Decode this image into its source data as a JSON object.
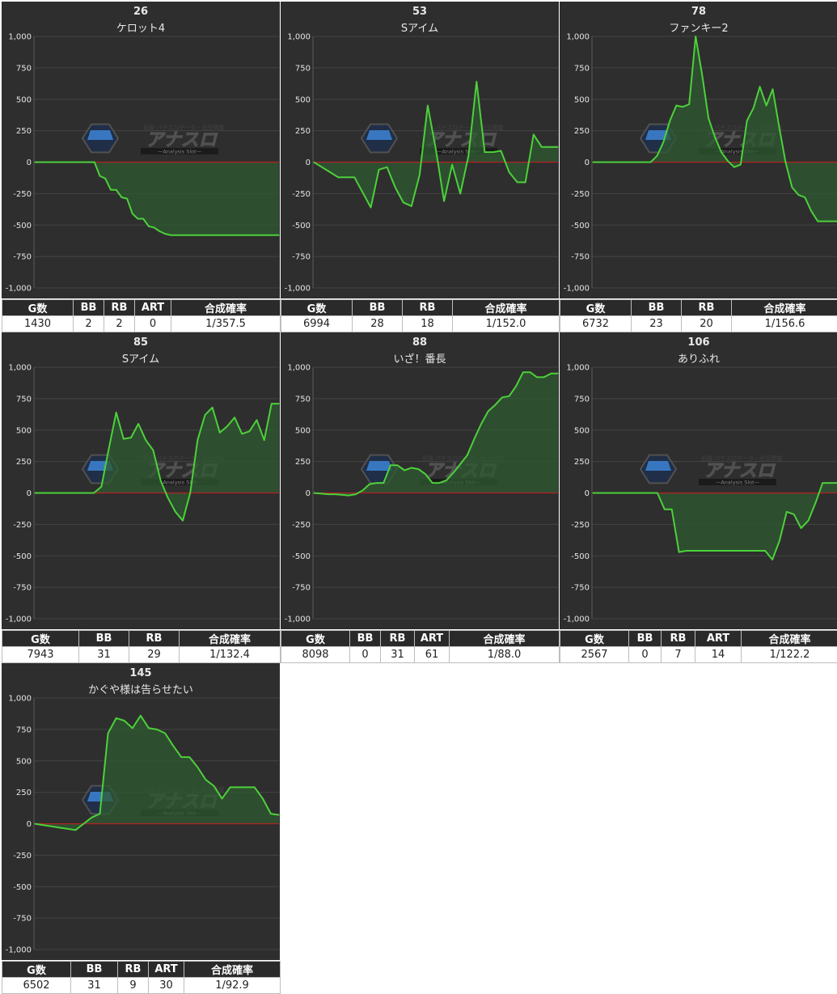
{
  "colors": {
    "plot_bg": "#2e2e2e",
    "line": "#4cd13a",
    "fill": "#2f5a31",
    "zero_line": "#b52222",
    "grid": "#444444"
  },
  "watermark": {
    "top": "全国 パチスロデータ・出玉情報",
    "main": "アナスロ",
    "sub": "—Analysis Slot—"
  },
  "charts": [
    {
      "number": "26",
      "name": "ケロット4",
      "headers": [
        "G数",
        "BB",
        "RB",
        "ART",
        "合成確率"
      ],
      "values": [
        "1430",
        "2",
        "2",
        "0",
        "1/357.5"
      ],
      "col_widths": [
        88,
        38,
        38,
        45,
        135
      ],
      "chart_data": {
        "type": "area",
        "ylim": [
          -1000,
          1000
        ],
        "yticks": [
          1000,
          750,
          500,
          250,
          0,
          -250,
          -500,
          -750,
          -1000
        ],
        "y": [
          0,
          0,
          0,
          0,
          0,
          0,
          0,
          0,
          0,
          0,
          0,
          0,
          -110,
          -130,
          -220,
          -220,
          -280,
          -290,
          -410,
          -450,
          -450,
          -510,
          -520,
          -550,
          -570,
          -580,
          -580,
          -580,
          -580,
          -580,
          -580,
          -580,
          -580,
          -580,
          -580,
          -580,
          -580,
          -580,
          -580,
          -580,
          -580,
          -580,
          -580,
          -580,
          -580,
          -580
        ]
      }
    },
    {
      "number": "53",
      "name": "Sアイム",
      "headers": [
        "G数",
        "BB",
        "RB",
        "合成確率"
      ],
      "values": [
        "6994",
        "28",
        "18",
        "1/152.0"
      ],
      "col_widths": [
        88,
        62,
        62,
        132
      ],
      "chart_data": {
        "type": "area",
        "ylim": [
          -1000,
          1000
        ],
        "yticks": [
          1000,
          750,
          500,
          250,
          0,
          -250,
          -500,
          -750,
          -1000
        ],
        "y": [
          0,
          -40,
          -80,
          -120,
          -120,
          -120,
          -240,
          -360,
          -60,
          -40,
          -200,
          -320,
          -350,
          -100,
          450,
          100,
          -310,
          -20,
          -250,
          50,
          640,
          80,
          80,
          90,
          -80,
          -160,
          -160,
          220,
          120,
          120,
          120
        ]
      }
    },
    {
      "number": "78",
      "name": "ファンキー2",
      "headers": [
        "G数",
        "BB",
        "RB",
        "合成確率"
      ],
      "values": [
        "6732",
        "23",
        "20",
        "1/156.6"
      ],
      "col_widths": [
        88,
        62,
        62,
        132
      ],
      "chart_data": {
        "type": "area",
        "ylim": [
          -1000,
          1000
        ],
        "yticks": [
          1000,
          750,
          500,
          250,
          0,
          -250,
          -500,
          -750,
          -1000
        ],
        "y": [
          0,
          0,
          0,
          0,
          0,
          0,
          0,
          0,
          0,
          0,
          50,
          160,
          330,
          450,
          440,
          460,
          1000,
          700,
          350,
          200,
          80,
          10,
          -40,
          -20,
          330,
          430,
          600,
          450,
          580,
          280,
          0,
          -200,
          -260,
          -280,
          -390,
          -470,
          -470,
          -470,
          -470
        ]
      }
    },
    {
      "number": "85",
      "name": "Sアイム",
      "headers": [
        "G数",
        "BB",
        "RB",
        "合成確率"
      ],
      "values": [
        "7943",
        "31",
        "29",
        "1/132.4"
      ],
      "col_widths": [
        95,
        62,
        62,
        125
      ],
      "chart_data": {
        "type": "area",
        "ylim": [
          -1000,
          1000
        ],
        "yticks": [
          1000,
          750,
          500,
          250,
          0,
          -250,
          -500,
          -750,
          -1000
        ],
        "y": [
          0,
          0,
          0,
          0,
          0,
          0,
          0,
          0,
          0,
          50,
          350,
          640,
          430,
          440,
          550,
          420,
          340,
          100,
          -40,
          -150,
          -220,
          0,
          420,
          620,
          680,
          480,
          530,
          600,
          470,
          490,
          580,
          420,
          710,
          710
        ]
      }
    },
    {
      "number": "88",
      "name": "いざ！番長",
      "headers": [
        "G数",
        "BB",
        "RB",
        "ART",
        "合成確率"
      ],
      "values": [
        "8098",
        "0",
        "31",
        "61",
        "1/88.0"
      ],
      "col_widths": [
        85,
        38,
        42,
        43,
        136
      ],
      "chart_data": {
        "type": "area",
        "ylim": [
          -1000,
          1000
        ],
        "yticks": [
          1000,
          750,
          500,
          250,
          0,
          -250,
          -500,
          -750,
          -1000
        ],
        "y": [
          0,
          -5,
          -10,
          -10,
          -15,
          -20,
          -10,
          20,
          70,
          80,
          80,
          220,
          220,
          180,
          200,
          190,
          150,
          80,
          80,
          100,
          160,
          230,
          300,
          430,
          550,
          650,
          700,
          760,
          770,
          850,
          960,
          960,
          920,
          920,
          950,
          950
        ]
      }
    },
    {
      "number": "106",
      "name": "ありふれ",
      "headers": [
        "G数",
        "BB",
        "RB",
        "ART",
        "合成確率"
      ],
      "values": [
        "2567",
        "0",
        "7",
        "14",
        "1/122.2"
      ],
      "col_widths": [
        85,
        40,
        42,
        57,
        120
      ],
      "chart_data": {
        "type": "area",
        "ylim": [
          -1000,
          1000
        ],
        "yticks": [
          1000,
          750,
          500,
          250,
          0,
          -250,
          -500,
          -750,
          -1000
        ],
        "y": [
          0,
          0,
          0,
          0,
          0,
          0,
          0,
          0,
          0,
          0,
          -130,
          -130,
          -470,
          -460,
          -460,
          -460,
          -460,
          -460,
          -460,
          -460,
          -460,
          -460,
          -460,
          -460,
          -460,
          -530,
          -380,
          -150,
          -170,
          -280,
          -220,
          -80,
          80,
          80,
          80
        ]
      }
    },
    {
      "number": "145",
      "name": "かぐや様は告らせたい",
      "headers": [
        "G数",
        "BB",
        "RB",
        "ART",
        "合成確率"
      ],
      "values": [
        "6502",
        "31",
        "9",
        "30",
        "1/92.9"
      ],
      "col_widths": [
        85,
        58,
        38,
        44,
        119
      ],
      "chart_data": {
        "type": "area",
        "ylim": [
          -1000,
          1000
        ],
        "yticks": [
          1000,
          750,
          500,
          250,
          0,
          -250,
          -500,
          -750,
          -1000
        ],
        "y": [
          0,
          -10,
          -20,
          -30,
          -40,
          -50,
          0,
          50,
          80,
          720,
          840,
          820,
          760,
          860,
          760,
          750,
          720,
          620,
          530,
          530,
          450,
          350,
          300,
          200,
          290,
          290,
          290,
          290,
          200,
          80,
          70
        ]
      }
    }
  ]
}
